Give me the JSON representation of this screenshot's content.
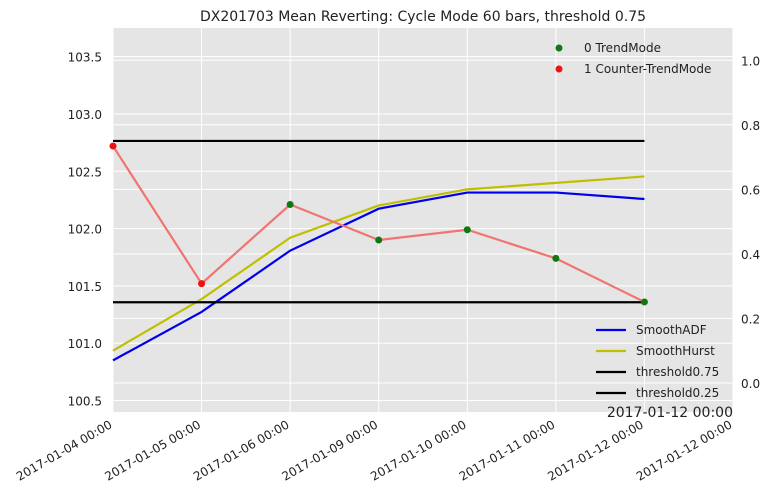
{
  "chart_data": {
    "type": "line",
    "title": "DX201703 Mean Reverting: Cycle Mode 60 bars, threshold 0.75",
    "x_ticks": [
      "2017-01-04 00:00",
      "2017-01-05 00:00",
      "2017-01-06 00:00",
      "2017-01-09 00:00",
      "2017-01-10 00:00",
      "2017-01-11 00:00",
      "2017-01-12 00:00",
      "2017-01-12 00:00"
    ],
    "x_offset_label": "2017-01-12 00:00",
    "left_axis": {
      "ylim": [
        100.4,
        103.75
      ],
      "ticks": [
        "100.5",
        "101.0",
        "101.5",
        "102.0",
        "102.5",
        "103.0",
        "103.5"
      ]
    },
    "right_axis": {
      "ylim": [
        -0.09,
        1.1
      ],
      "ticks": [
        "0.0",
        "0.2",
        "0.4",
        "0.6",
        "0.8",
        "1.0"
      ]
    },
    "price_series": {
      "name": "",
      "color": "#f07470",
      "values": [
        102.72,
        101.52,
        102.21,
        101.9,
        101.99,
        101.74,
        101.36
      ],
      "trend_mode": [
        1,
        1,
        0,
        0,
        0,
        0,
        0
      ]
    },
    "series": [
      {
        "name": "SmoothADF",
        "color": "#0000ee",
        "axis": "right",
        "values": [
          0.07,
          0.22,
          0.41,
          0.54,
          0.59,
          0.59,
          0.57
        ]
      },
      {
        "name": "SmoothHurst",
        "color": "#bfbf00",
        "axis": "right",
        "values": [
          0.1,
          0.26,
          0.45,
          0.55,
          0.6,
          0.62,
          0.64
        ]
      },
      {
        "name": "threshold0.75",
        "color": "#000000",
        "axis": "right",
        "values": [
          0.75,
          0.75,
          0.75,
          0.75,
          0.75,
          0.75,
          0.75
        ]
      },
      {
        "name": "threshold0.25",
        "color": "#000000",
        "axis": "right",
        "values": [
          0.25,
          0.25,
          0.25,
          0.25,
          0.25,
          0.25,
          0.25
        ]
      }
    ],
    "scatter_legend": [
      {
        "label": "0 TrendMode",
        "color": "#117711"
      },
      {
        "label": "1 Counter-TrendMode",
        "color": "#ee1111"
      }
    ],
    "legend_position": "bottom-right",
    "scatter_legend_position": "top-right",
    "grid": true,
    "background": "#e5e5e5"
  }
}
